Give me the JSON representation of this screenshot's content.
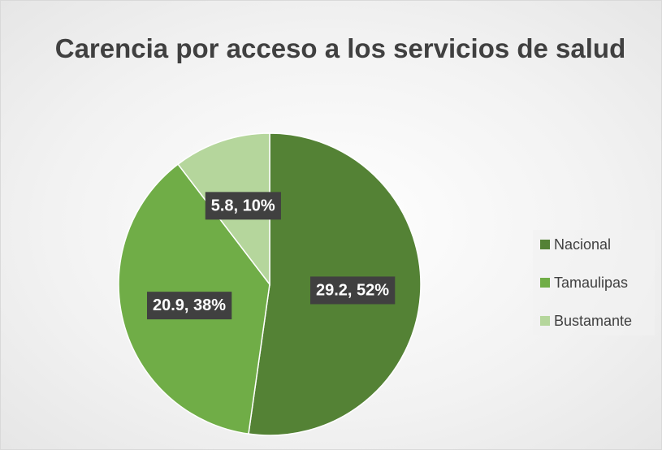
{
  "chart_data": {
    "type": "pie",
    "title": "Carencia por acceso a los servicios de salud",
    "categories": [
      "Nacional",
      "Tamaulipas",
      "Bustamante"
    ],
    "values": [
      29.2,
      20.9,
      5.8
    ],
    "value_labels": [
      "29.2, 52%",
      "20.9, 38%",
      "5.8, 10%"
    ],
    "colors": [
      "#548235",
      "#70ad47",
      "#b5d69c"
    ],
    "legend": "right"
  }
}
